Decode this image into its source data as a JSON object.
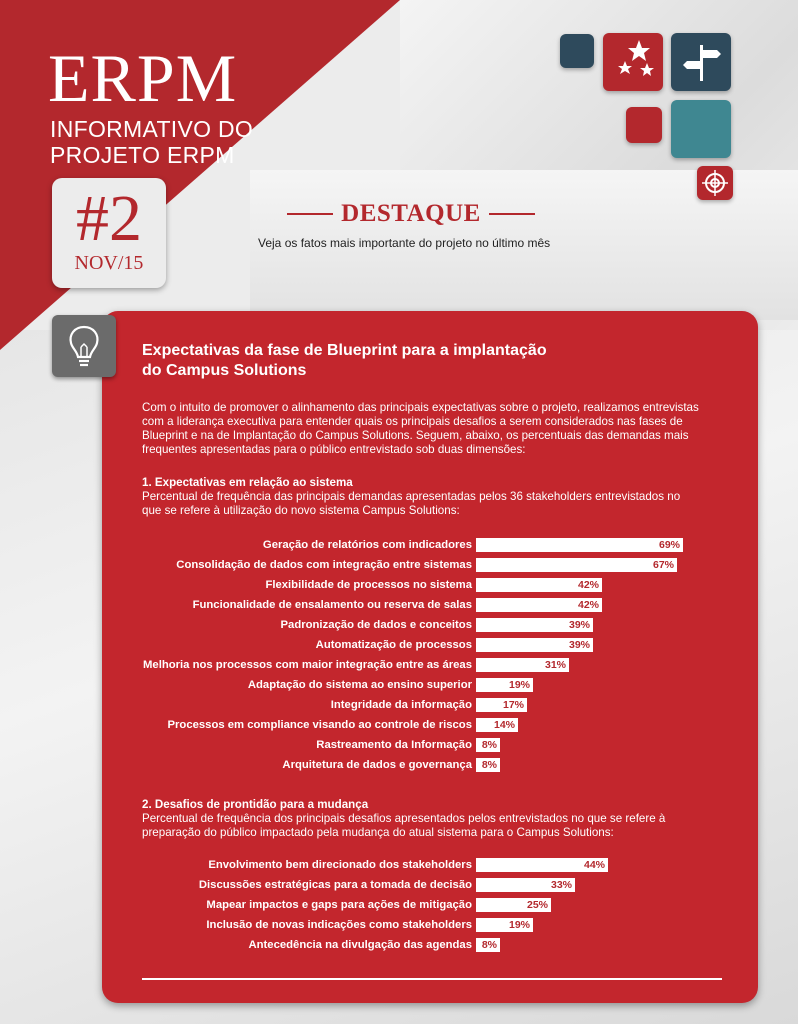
{
  "header": {
    "logo": "ERPM",
    "subtitle_line1": "INFORMATIVO DO",
    "subtitle_line2": "PROJETO ERPM",
    "issue_number": "#2",
    "issue_date": "NOV/15",
    "highlight_title": "DESTAQUE",
    "highlight_subtitle": "Veja os fatos mais importante do projeto no último mês"
  },
  "icons": {
    "stars": "stars-icon",
    "signpost": "signpost-icon",
    "target": "target-icon",
    "lightbulb": "lightbulb-icon"
  },
  "colors": {
    "accent_red": "#b3282d",
    "dark_slate": "#2e4a5c",
    "teal": "#3f8791",
    "gray": "#6b6b6b"
  },
  "article": {
    "title_line1": "Expectativas da fase de Blueprint para a implantação",
    "title_line2": "do Campus Solutions",
    "intro": "Com o intuito de promover o alinhamento das principais expectativas sobre o projeto, realizamos entrevistas com a liderança executiva para entender quais os principais desafios a serem considerados nas fases de Blueprint e na de Implantação do Campus Solutions. Seguem, abaixo, os percentuais das demandas mais frequentes apresentadas para o público entrevistado sob duas dimensões:",
    "section1_title": "1. Expectativas em relação ao sistema",
    "section1_desc": "Percentual de frequência das principais demandas apresentadas pelos 36 stakeholders entrevistados no que se refere à utilização do novo sistema Campus Solutions:",
    "section2_title": "2. Desafios de prontidão para a mudança",
    "section2_desc": "Percentual de frequência dos principais desafios apresentados pelos entrevistados no que se refere à preparação do público impactado pela mudança do atual sistema para o Campus Solutions:"
  },
  "chart_data": [
    {
      "type": "bar",
      "categories": [
        "Geração de relatórios com indicadores",
        "Consolidação de dados com integração entre sistemas",
        "Flexibilidade de processos no sistema",
        "Funcionalidade de ensalamento ou reserva de salas",
        "Padronização de dados e conceitos",
        "Automatização de processos",
        "Melhoria nos processos com maior integração entre as áreas",
        "Adaptação do sistema ao ensino superior",
        "Integridade da informação",
        "Processos em compliance visando ao controle de riscos",
        "Rastreamento da Informação",
        "Arquitetura de dados e governança"
      ],
      "values": [
        69,
        67,
        42,
        42,
        39,
        39,
        31,
        19,
        17,
        14,
        8,
        8
      ],
      "labels": [
        "69%",
        "67%",
        "42%",
        "42%",
        "39%",
        "39%",
        "31%",
        "19%",
        "17%",
        "14%",
        "8%",
        "8%"
      ],
      "orientation": "horizontal",
      "xlim": [
        0,
        75
      ]
    },
    {
      "type": "bar",
      "categories": [
        "Envolvimento bem direcionado dos stakeholders",
        "Discussões estratégicas para a tomada de decisão",
        "Mapear impactos e gaps para ações de mitigação",
        "Inclusão de novas indicações como stakeholders",
        "Antecedência na divulgação das agendas"
      ],
      "values": [
        44,
        33,
        25,
        19,
        8
      ],
      "labels": [
        "44%",
        "33%",
        "25%",
        "19%",
        "8%"
      ],
      "orientation": "horizontal",
      "xlim": [
        0,
        75
      ]
    }
  ]
}
